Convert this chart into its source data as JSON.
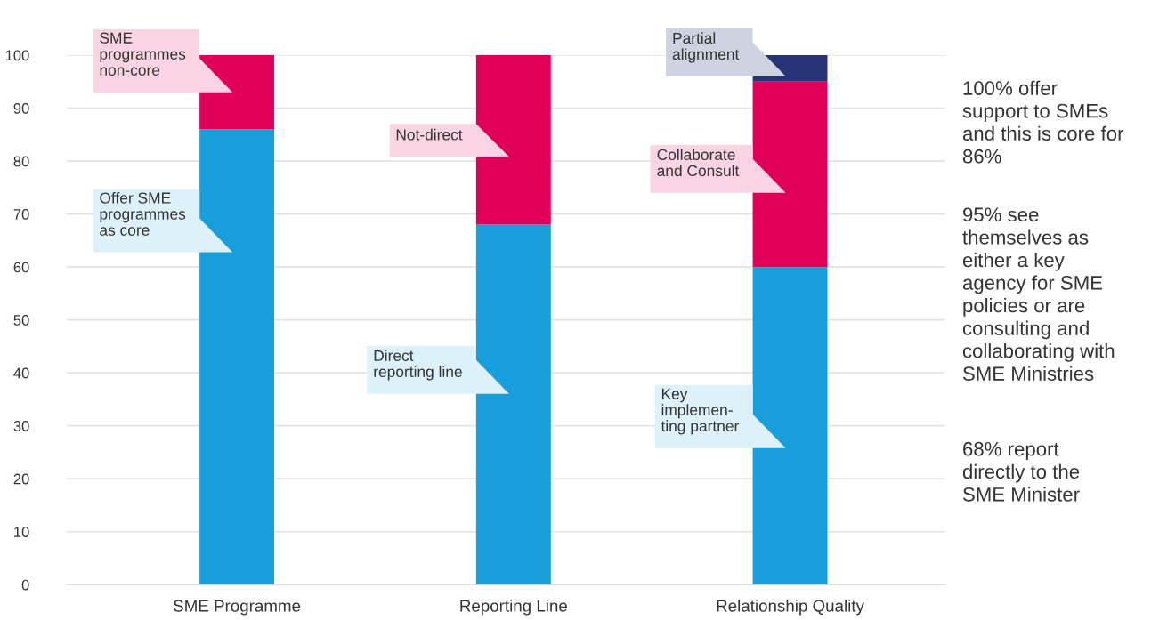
{
  "chart_data": {
    "type": "bar",
    "stacked": true,
    "categories": [
      "SME Programme",
      "Reporting Line",
      "Relationship Quality"
    ],
    "series": [
      {
        "color": "#189fdb",
        "values": [
          86,
          68,
          60
        ]
      },
      {
        "color": "#e0005a",
        "values": [
          14,
          32,
          35
        ]
      },
      {
        "color": "#263377",
        "values": [
          null,
          null,
          5
        ]
      }
    ],
    "ylim": [
      0,
      100
    ],
    "yticks": [
      0,
      10,
      20,
      30,
      40,
      50,
      60,
      70,
      80,
      90,
      100
    ],
    "grid": "y",
    "annotations": [
      "SME\nprogrammes\nnon-core",
      "Offer SME\nprogrammes\nas core",
      "Not-direct",
      "Direct\nreporting line",
      "Partial\nalignment",
      "Collaborate\nand Consult",
      "Key\nimplemen-\nting partner",
      "100% offer\nsupport to SMEs\nand this is core for\n86%",
      "95% see\nthemselves as\neither a key\nagency for SME\npolicies or are\nconsulting and\ncollaborating with\nSME Ministries",
      "68% report\ndirectly to the\nSME Minister"
    ]
  }
}
